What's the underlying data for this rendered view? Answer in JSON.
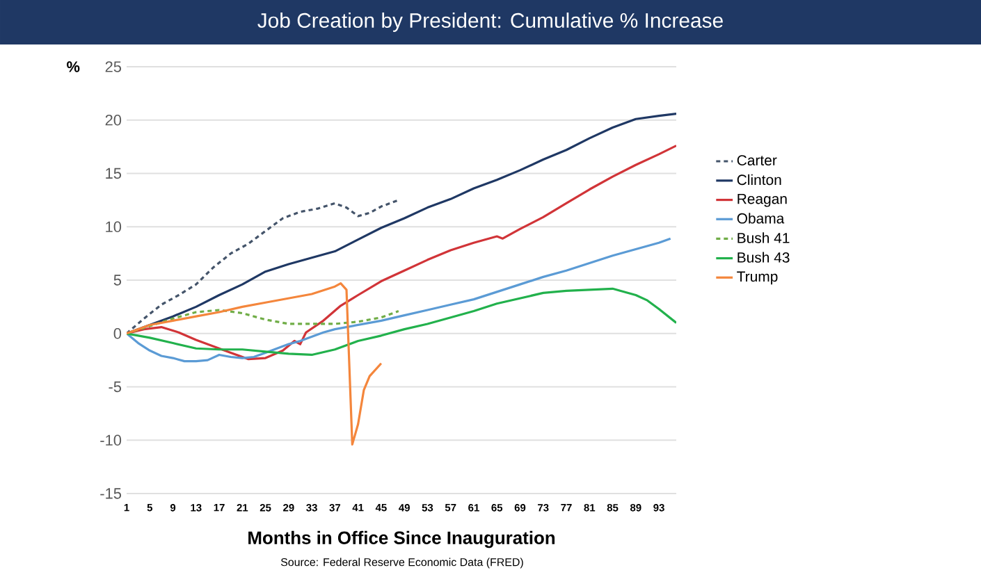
{
  "chart_data": {
    "type": "line",
    "title": "Job Creation by President:  Cumulative % Increase",
    "xlabel": "Months in Office Since Inauguration",
    "ylabel": "%",
    "annotations": [
      "Source:  Federal Reserve Economic Data (FRED)"
    ],
    "xlim": [
      1,
      96
    ],
    "ylim": [
      -15,
      25
    ],
    "xticks": [
      1,
      5,
      9,
      13,
      17,
      21,
      25,
      29,
      33,
      37,
      41,
      45,
      49,
      53,
      57,
      61,
      65,
      69,
      73,
      77,
      81,
      85,
      89,
      93
    ],
    "yticks": [
      -15,
      -10,
      -5,
      0,
      5,
      10,
      15,
      20,
      25
    ],
    "grid": "y",
    "legend": "right",
    "series": [
      {
        "name": "Carter",
        "color": "#44546a",
        "line_style": "dashed",
        "x": [
          1,
          4,
          7,
          10,
          13,
          16,
          19,
          22,
          25,
          28,
          31,
          34,
          37,
          39,
          41,
          43,
          45,
          48
        ],
        "values": [
          0,
          1.4,
          2.7,
          3.6,
          4.6,
          6.2,
          7.5,
          8.4,
          9.6,
          10.8,
          11.4,
          11.7,
          12.2,
          11.8,
          11.0,
          11.3,
          11.9,
          12.5
        ]
      },
      {
        "name": "Clinton",
        "color": "#1f3864",
        "line_style": "solid",
        "x": [
          1,
          5,
          9,
          13,
          17,
          21,
          25,
          29,
          33,
          37,
          41,
          45,
          49,
          53,
          57,
          61,
          65,
          69,
          73,
          77,
          81,
          85,
          89,
          93,
          96
        ],
        "values": [
          0,
          0.8,
          1.6,
          2.5,
          3.6,
          4.6,
          5.8,
          6.5,
          7.1,
          7.7,
          8.8,
          9.9,
          10.8,
          11.8,
          12.6,
          13.6,
          14.4,
          15.3,
          16.3,
          17.2,
          18.3,
          19.3,
          20.1,
          20.4,
          20.6
        ]
      },
      {
        "name": "Reagan",
        "color": "#d13438",
        "line_style": "solid",
        "x": [
          1,
          4,
          7,
          10,
          13,
          16,
          19,
          22,
          25,
          28,
          30,
          31,
          32,
          35,
          38,
          41,
          45,
          49,
          53,
          57,
          61,
          65,
          66,
          69,
          73,
          77,
          81,
          85,
          89,
          93,
          96
        ],
        "values": [
          0,
          0.4,
          0.6,
          0.1,
          -0.6,
          -1.2,
          -1.8,
          -2.4,
          -2.3,
          -1.6,
          -0.7,
          -1.0,
          0.1,
          1.2,
          2.6,
          3.6,
          4.9,
          5.9,
          6.9,
          7.8,
          8.5,
          9.1,
          8.9,
          9.8,
          10.9,
          12.2,
          13.5,
          14.7,
          15.8,
          16.8,
          17.6
        ]
      },
      {
        "name": "Obama",
        "color": "#5b9bd5",
        "line_style": "solid",
        "x": [
          1,
          3,
          5,
          7,
          9,
          11,
          13,
          15,
          17,
          19,
          21,
          23,
          25,
          27,
          29,
          31,
          33,
          35,
          37,
          41,
          45,
          49,
          53,
          57,
          61,
          65,
          69,
          73,
          77,
          81,
          85,
          89,
          93,
          95
        ],
        "values": [
          0,
          -0.9,
          -1.6,
          -2.1,
          -2.3,
          -2.6,
          -2.6,
          -2.5,
          -2.0,
          -2.2,
          -2.3,
          -2.2,
          -1.8,
          -1.4,
          -1.0,
          -0.7,
          -0.3,
          0.1,
          0.4,
          0.8,
          1.2,
          1.7,
          2.2,
          2.7,
          3.2,
          3.9,
          4.6,
          5.3,
          5.9,
          6.6,
          7.3,
          7.9,
          8.5,
          8.9
        ]
      },
      {
        "name": "Bush 41",
        "color": "#70ad47",
        "line_style": "dashed",
        "x": [
          1,
          5,
          9,
          13,
          17,
          21,
          25,
          29,
          33,
          37,
          41,
          45,
          48
        ],
        "values": [
          0,
          0.7,
          1.4,
          2.0,
          2.2,
          1.9,
          1.3,
          0.9,
          0.9,
          0.9,
          1.1,
          1.5,
          2.1
        ]
      },
      {
        "name": "Bush 43",
        "color": "#22b14c",
        "line_style": "solid",
        "x": [
          1,
          5,
          9,
          13,
          17,
          21,
          25,
          29,
          33,
          37,
          41,
          45,
          49,
          53,
          57,
          61,
          65,
          69,
          73,
          77,
          81,
          85,
          89,
          91,
          93,
          96
        ],
        "values": [
          0,
          -0.4,
          -0.9,
          -1.4,
          -1.5,
          -1.5,
          -1.7,
          -1.9,
          -2.0,
          -1.5,
          -0.7,
          -0.2,
          0.4,
          0.9,
          1.5,
          2.1,
          2.8,
          3.3,
          3.8,
          4.0,
          4.1,
          4.2,
          3.6,
          3.1,
          2.3,
          1.0
        ]
      },
      {
        "name": "Trump",
        "color": "#f4863c",
        "line_style": "solid",
        "x": [
          1,
          5,
          9,
          13,
          17,
          21,
          25,
          29,
          33,
          37,
          38,
          39,
          40,
          41,
          42,
          43,
          45
        ],
        "values": [
          0,
          0.8,
          1.2,
          1.6,
          2.0,
          2.5,
          2.9,
          3.3,
          3.7,
          4.4,
          4.7,
          4.1,
          -10.4,
          -8.5,
          -5.3,
          -4.0,
          -2.8
        ]
      }
    ]
  }
}
